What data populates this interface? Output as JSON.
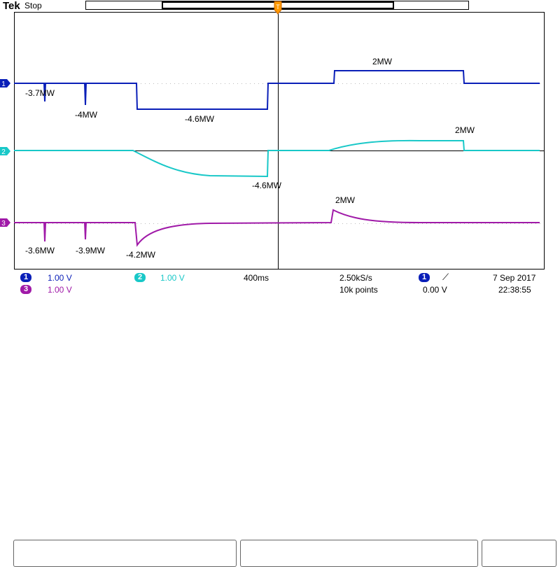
{
  "header": {
    "brand": "Tek",
    "acq_state": "Stop"
  },
  "annotations": {
    "ch1": [
      "-3.7MW",
      "-4MW",
      "-4.6MW",
      "2MW"
    ],
    "ch2": [
      "-4.6MW",
      "2MW"
    ],
    "ch3": [
      "-3.6MW",
      "-3.9MW",
      "-4.2MW",
      "2MW"
    ]
  },
  "channels": [
    {
      "id": "1",
      "color": "#0a1fb8",
      "scale": "1.00 V"
    },
    {
      "id": "2",
      "color": "#19c8c8",
      "scale": "1.00 V"
    },
    {
      "id": "3",
      "color": "#a01aa8",
      "scale": "1.00 V"
    }
  ],
  "timebase": {
    "time_per_div": "400ms",
    "sample_rate": "2.50kS/s",
    "record_length": "10k points"
  },
  "trigger": {
    "source": "1",
    "slope_icon": "rising-edge-icon",
    "level": "0.00 V"
  },
  "datetime": {
    "date": "7 Sep  2017",
    "time": "22:38:55"
  }
}
